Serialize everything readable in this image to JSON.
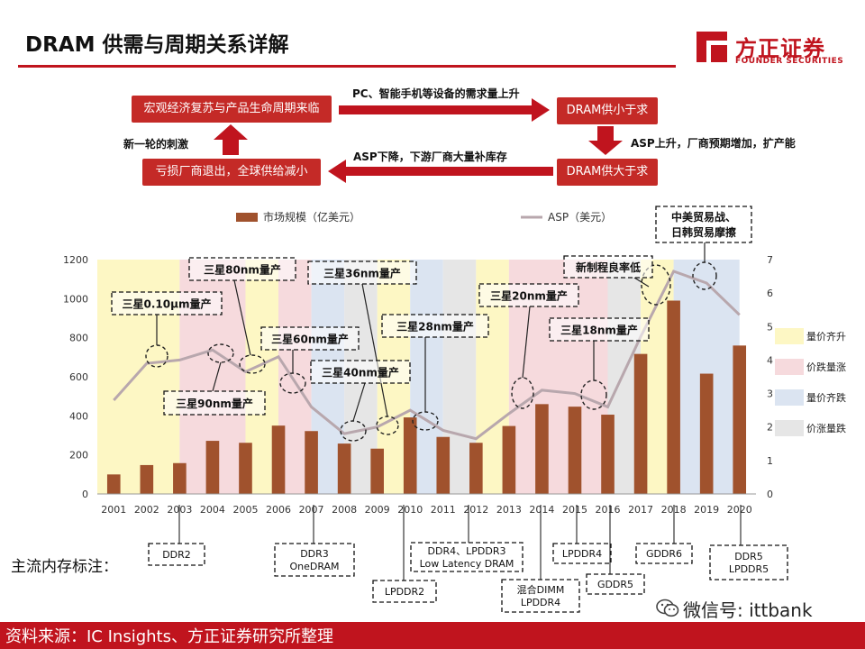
{
  "header": {
    "title": "DRAM 供需与周期关系详解",
    "brand_cn": "方正证券",
    "brand_en": "FOUNDER SECURITIES"
  },
  "flow": {
    "box_top_left": "宏观经济复苏与产品生命周期来临",
    "box_top_right": "DRAM供小于求",
    "box_bottom_right": "DRAM供大于求",
    "box_bottom_left": "亏损厂商退出，全球供给减小",
    "arrow_top": "PC、智能手机等设备的需求量上升",
    "arrow_right": "ASP上升，厂商预期增加，扩产能",
    "arrow_bottom": "ASP下降，下游厂商大量补库存",
    "arrow_left": "新一轮的刺激"
  },
  "chart_data": {
    "type": "bar+line",
    "categories": [
      "2001",
      "2002",
      "2003",
      "2004",
      "2005",
      "2006",
      "2007",
      "2008",
      "2009",
      "2010",
      "2011",
      "2012",
      "2013",
      "2014",
      "2015",
      "2016",
      "2017",
      "2018",
      "2019",
      "2020"
    ],
    "series": [
      {
        "name": "市场规模（亿美元）",
        "type": "bar",
        "axis": "left",
        "color": "#a0522d",
        "values": [
          100,
          148,
          158,
          272,
          262,
          350,
          322,
          258,
          232,
          392,
          292,
          262,
          348,
          460,
          447,
          406,
          717,
          990,
          616,
          760
        ]
      },
      {
        "name": "ASP（美元）",
        "type": "line",
        "axis": "right",
        "color": "#b8a7ad",
        "values": [
          2.8,
          3.9,
          4.0,
          4.3,
          3.65,
          4.1,
          2.6,
          1.8,
          2.0,
          2.5,
          1.9,
          1.65,
          2.4,
          3.1,
          3.0,
          2.6,
          4.7,
          6.65,
          6.3,
          5.35
        ]
      }
    ],
    "ylim_left": [
      0,
      1200
    ],
    "yticks_left": [
      0,
      200,
      400,
      600,
      800,
      1000,
      1200
    ],
    "ylim_right": [
      0,
      7
    ],
    "yticks_right": [
      0,
      1,
      2,
      3,
      4,
      5,
      6,
      7
    ],
    "legend_position": "top",
    "phases": {
      "legend": [
        {
          "key": "rise",
          "label": "量价齐升",
          "color": "#fdf7c4"
        },
        {
          "key": "vdp",
          "label": "价跌量涨",
          "color": "#f6dadd"
        },
        {
          "key": "fall",
          "label": "量价齐跌",
          "color": "#dbe4f1"
        },
        {
          "key": "pdv",
          "label": "价涨量跌",
          "color": "#e6e6e6"
        }
      ],
      "bands": [
        {
          "from": 2001,
          "to": 2003.5,
          "key": "rise"
        },
        {
          "from": 2003.5,
          "to": 2005.5,
          "key": "vdp"
        },
        {
          "from": 2005.5,
          "to": 2006.5,
          "key": "rise"
        },
        {
          "from": 2006.5,
          "to": 2007.5,
          "key": "vdp"
        },
        {
          "from": 2007.5,
          "to": 2008.5,
          "key": "fall"
        },
        {
          "from": 2008.5,
          "to": 2009.5,
          "key": "pdv"
        },
        {
          "from": 2009.5,
          "to": 2010.5,
          "key": "rise"
        },
        {
          "from": 2010.5,
          "to": 2011.5,
          "key": "fall"
        },
        {
          "from": 2011.5,
          "to": 2012.5,
          "key": "pdv"
        },
        {
          "from": 2012.5,
          "to": 2013.5,
          "key": "rise"
        },
        {
          "from": 2013.5,
          "to": 2016.5,
          "key": "vdp"
        },
        {
          "from": 2016.5,
          "to": 2017.5,
          "key": "pdv"
        },
        {
          "from": 2017.5,
          "to": 2018.5,
          "key": "rise"
        },
        {
          "from": 2018.5,
          "to": 2020.5,
          "key": "fall"
        }
      ]
    },
    "annotations": [
      {
        "text": "三星0.10μm量产",
        "year": 2002.4,
        "asp": 3.95
      },
      {
        "text": "三星80nm量产",
        "year": 2005.2,
        "asp": 3.6
      },
      {
        "text": "三星90nm量产",
        "year": 2004.2,
        "asp": 3.9
      },
      {
        "text": "三星36nm量产",
        "year": 2010.9,
        "asp": 2.3
      },
      {
        "text": "三星60nm量产",
        "year": 2006.5,
        "asp": 3.1
      },
      {
        "text": "三星40nm量产",
        "year": 2008.3,
        "asp": 1.8
      },
      {
        "text": "三星28nm量产",
        "year": 2010.4,
        "asp": 2.1
      },
      {
        "text": "三星20nm量产",
        "year": 2013.4,
        "asp": 2.9
      },
      {
        "text": "三星18nm量产",
        "year": 2015.5,
        "asp": 2.8
      },
      {
        "text": "新制程良率低",
        "year": 2017.5,
        "asp": 5.8
      },
      {
        "text": "中美贸易战、日韩贸易摩擦",
        "year": 2019.0,
        "asp": 6.1
      }
    ]
  },
  "memory": {
    "title": "主流内存标注：",
    "items": [
      {
        "text": "DDR2",
        "year": 2003
      },
      {
        "text": "DDR3 OneDRAM",
        "year": 2007
      },
      {
        "text": "LPDDR2",
        "year": 2010
      },
      {
        "text": "DDR4、LPDDR3 Low Latency DRAM",
        "year": 2012
      },
      {
        "text": "混合DIMM LPDDR4",
        "year": 2014
      },
      {
        "text": "LPDDR4",
        "year": 2015
      },
      {
        "text": "GDDR5",
        "year": 2016
      },
      {
        "text": "GDDR6",
        "year": 2018
      },
      {
        "text": "DDR5 LPDDR5",
        "year": 2020
      }
    ]
  },
  "footer": {
    "source": "资料来源：IC Insights、方正证券研究所整理",
    "wechat": "微信号: ittbank"
  }
}
